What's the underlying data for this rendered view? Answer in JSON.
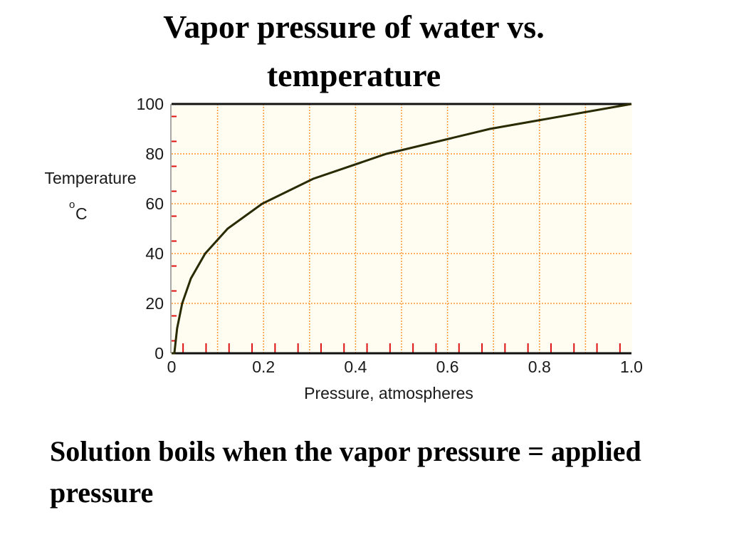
{
  "slide": {
    "title_line1": "Vapor pressure of water vs.",
    "title_line2": "temperature",
    "caption": "Solution boils when the vapor pressure = applied pressure"
  },
  "chart_data": {
    "type": "line",
    "xlabel": "Pressure, atmospheres",
    "ylabel_line1": "Temperature",
    "ylabel_degree": "o",
    "ylabel_unit": "C",
    "xlim": [
      0,
      1.0
    ],
    "ylim": [
      0,
      100
    ],
    "x_ticks": [
      "0",
      "0.2",
      "0.4",
      "0.6",
      "0.8",
      "1.0"
    ],
    "y_ticks": [
      "0",
      "20",
      "40",
      "60",
      "80",
      "100"
    ],
    "grid": true,
    "grid_color": "#ff9933",
    "plot_background": "#fffdf2",
    "line_color": "#2a2a00",
    "series": [
      {
        "x": [
          0.0,
          0.006,
          0.012,
          0.023,
          0.042,
          0.073,
          0.122,
          0.197,
          0.308,
          0.467,
          0.692,
          1.0
        ],
        "y": [
          0,
          0,
          10,
          20,
          30,
          40,
          50,
          60,
          70,
          80,
          90,
          100
        ]
      }
    ]
  }
}
